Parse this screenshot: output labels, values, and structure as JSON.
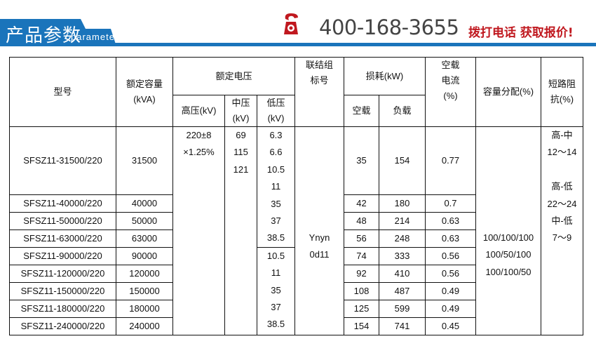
{
  "banner": {
    "title": "产品参数",
    "subtitle": "parameter",
    "phone": "400-168-3655",
    "slogan": "拨打电话  获取报价!",
    "accent": "#1a74bb",
    "slogan_color": "#c0181f",
    "phone_icon": "telephone-icon"
  },
  "table": {
    "headers": {
      "model": "型号",
      "capacity": "额定容量\n(kVA)",
      "rated_voltage": "额定电压",
      "hv": "高压(kV)",
      "mv": "中压\n(kV)",
      "lv": "低压\n(kV)",
      "vector": "联结组\n标号",
      "loss": "损耗(kW)",
      "no_load": "空载",
      "load": "负载",
      "current": "空载\n电流\n(%)",
      "distribution": "容量分配(%)",
      "impedance": "短路阻\n抗(%)"
    },
    "rows": [
      {
        "model": "SFSZ11-31500/220",
        "capacity": "31500",
        "no_load": "35",
        "load": "154",
        "current": "0.77"
      },
      {
        "model": "SFSZ11-40000/220",
        "capacity": "40000",
        "no_load": "42",
        "load": "180",
        "current": "0.7"
      },
      {
        "model": "SFSZ11-50000/220",
        "capacity": "50000",
        "no_load": "48",
        "load": "214",
        "current": "0.63"
      },
      {
        "model": "SFSZ11-63000/220",
        "capacity": "63000",
        "no_load": "56",
        "load": "248",
        "current": "0.63"
      },
      {
        "model": "SFSZ11-90000/220",
        "capacity": "90000",
        "no_load": "74",
        "load": "333",
        "current": "0.56"
      },
      {
        "model": "SFSZ11-120000/220",
        "capacity": "120000",
        "no_load": "92",
        "load": "410",
        "current": "0.56"
      },
      {
        "model": "SFSZ11-150000/220",
        "capacity": "150000",
        "no_load": "108",
        "load": "487",
        "current": "0.49"
      },
      {
        "model": "SFSZ11-180000/220",
        "capacity": "180000",
        "no_load": "125",
        "load": "599",
        "current": "0.49"
      },
      {
        "model": "SFSZ11-240000/220",
        "capacity": "240000",
        "no_load": "154",
        "load": "741",
        "current": "0.45"
      }
    ],
    "hv_values": [
      "220±8",
      "×1.25%"
    ],
    "mv_values": [
      "69",
      "115",
      "121"
    ],
    "lv_group1": [
      "6.3",
      "6.6",
      "10.5",
      "11",
      "35",
      "37",
      "38.5"
    ],
    "lv_group2": [
      "10.5",
      "11",
      "35",
      "37",
      "38.5"
    ],
    "vector_values": [
      "Ynyn",
      "0d11"
    ],
    "distribution_values": [
      "100/100/100",
      "100/50/100",
      "100/100/50"
    ],
    "impedance_values": [
      "高-中",
      "12～14",
      "",
      "高-低",
      "22～24",
      "中-低",
      "7～9"
    ]
  }
}
